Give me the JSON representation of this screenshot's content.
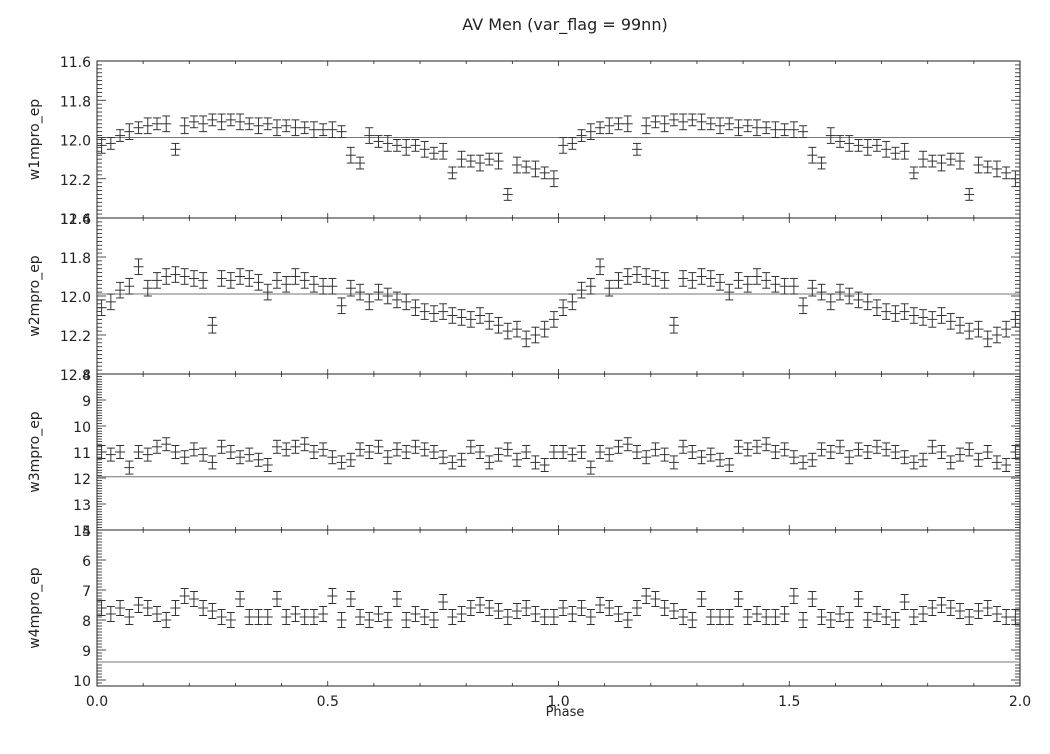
{
  "chart_data": {
    "type": "scatter",
    "title": "AV Men (var_flag = 99nn)",
    "xlabel": "Phase",
    "xlim": [
      0.0,
      2.0
    ],
    "xticks": [
      "0.0",
      "0.5",
      "1.0",
      "1.5",
      "2.0"
    ],
    "panels": [
      {
        "ylabel": "w1mpro_ep",
        "ylim": [
          12.4,
          11.6
        ],
        "yticks": [
          "11.6",
          "11.8",
          "12.0",
          "12.2",
          "12.4"
        ],
        "reference_line": 11.99,
        "series": [
          {
            "x": [
              0.01,
              0.03,
              0.05,
              0.07,
              0.09,
              0.11,
              0.13,
              0.15,
              0.17,
              0.19,
              0.21,
              0.23,
              0.25,
              0.27,
              0.29,
              0.31,
              0.33,
              0.35,
              0.37,
              0.39,
              0.41,
              0.43,
              0.45,
              0.47,
              0.49,
              0.51,
              0.53,
              0.55,
              0.57,
              0.59,
              0.61,
              0.63,
              0.65,
              0.67,
              0.69,
              0.71,
              0.73,
              0.75,
              0.77,
              0.79,
              0.81,
              0.83,
              0.85,
              0.87,
              0.89,
              0.91,
              0.93,
              0.95,
              0.97,
              0.99
            ],
            "y": [
              12.03,
              12.02,
              11.98,
              11.96,
              11.94,
              11.93,
              11.92,
              11.92,
              12.05,
              11.93,
              11.91,
              11.92,
              11.9,
              11.91,
              11.9,
              11.91,
              11.92,
              11.93,
              11.92,
              11.94,
              11.93,
              11.94,
              11.94,
              11.95,
              11.95,
              11.95,
              11.96,
              12.08,
              12.12,
              11.98,
              12.01,
              12.02,
              12.03,
              12.04,
              12.03,
              12.05,
              12.07,
              12.06,
              12.17,
              12.1,
              12.11,
              12.12,
              12.1,
              12.11,
              12.28,
              12.13,
              12.14,
              12.15,
              12.17,
              12.2
            ],
            "err": [
              0.04,
              0.03,
              0.03,
              0.04,
              0.03,
              0.04,
              0.03,
              0.04,
              0.03,
              0.04,
              0.03,
              0.04,
              0.03,
              0.04,
              0.03,
              0.04,
              0.03,
              0.04,
              0.03,
              0.04,
              0.03,
              0.04,
              0.03,
              0.04,
              0.03,
              0.04,
              0.03,
              0.04,
              0.03,
              0.04,
              0.03,
              0.04,
              0.03,
              0.04,
              0.03,
              0.04,
              0.03,
              0.04,
              0.03,
              0.04,
              0.03,
              0.04,
              0.03,
              0.04,
              0.03,
              0.04,
              0.03,
              0.04,
              0.03,
              0.04
            ]
          }
        ]
      },
      {
        "ylabel": "w2mpro_ep",
        "ylim": [
          12.4,
          11.6
        ],
        "yticks": [
          "11.6",
          "11.8",
          "12.0",
          "12.2",
          "12.4"
        ],
        "reference_line": 11.99,
        "series": [
          {
            "x": [
              0.01,
              0.03,
              0.05,
              0.07,
              0.09,
              0.11,
              0.13,
              0.15,
              0.17,
              0.19,
              0.21,
              0.23,
              0.25,
              0.27,
              0.29,
              0.31,
              0.33,
              0.35,
              0.37,
              0.39,
              0.41,
              0.43,
              0.45,
              0.47,
              0.49,
              0.51,
              0.53,
              0.55,
              0.57,
              0.59,
              0.61,
              0.63,
              0.65,
              0.67,
              0.69,
              0.71,
              0.73,
              0.75,
              0.77,
              0.79,
              0.81,
              0.83,
              0.85,
              0.87,
              0.89,
              0.91,
              0.93,
              0.95,
              0.97,
              0.99
            ],
            "y": [
              12.06,
              12.03,
              11.97,
              11.95,
              11.85,
              11.96,
              11.92,
              11.9,
              11.89,
              11.9,
              11.91,
              11.92,
              12.15,
              11.91,
              11.92,
              11.9,
              11.91,
              11.93,
              11.98,
              11.92,
              11.94,
              11.9,
              11.92,
              11.94,
              11.95,
              11.95,
              12.05,
              11.96,
              11.98,
              12.03,
              11.98,
              12.0,
              12.02,
              12.03,
              12.06,
              12.08,
              12.09,
              12.08,
              12.1,
              12.11,
              12.12,
              12.1,
              12.13,
              12.15,
              12.18,
              12.17,
              12.22,
              12.2,
              12.17,
              12.12
            ],
            "err": [
              0.04,
              0.04,
              0.04,
              0.04,
              0.04,
              0.04,
              0.04,
              0.04,
              0.04,
              0.04,
              0.04,
              0.04,
              0.04,
              0.04,
              0.04,
              0.04,
              0.04,
              0.04,
              0.04,
              0.04,
              0.04,
              0.04,
              0.04,
              0.04,
              0.04,
              0.04,
              0.04,
              0.04,
              0.04,
              0.04,
              0.04,
              0.04,
              0.04,
              0.04,
              0.04,
              0.04,
              0.04,
              0.04,
              0.04,
              0.04,
              0.04,
              0.04,
              0.04,
              0.04,
              0.04,
              0.04,
              0.04,
              0.04,
              0.04,
              0.04
            ]
          }
        ]
      },
      {
        "ylabel": "w3mpro_ep",
        "ylim": [
          14,
          8
        ],
        "yticks": [
          "8",
          "9",
          "10",
          "11",
          "12",
          "13",
          "14"
        ],
        "reference_line": 11.95,
        "series": [
          {
            "x": [
              0.01,
              0.03,
              0.05,
              0.07,
              0.09,
              0.11,
              0.13,
              0.15,
              0.17,
              0.19,
              0.21,
              0.23,
              0.25,
              0.27,
              0.29,
              0.31,
              0.33,
              0.35,
              0.37,
              0.39,
              0.41,
              0.43,
              0.45,
              0.47,
              0.49,
              0.51,
              0.53,
              0.55,
              0.57,
              0.59,
              0.61,
              0.63,
              0.65,
              0.67,
              0.69,
              0.71,
              0.73,
              0.75,
              0.77,
              0.79,
              0.81,
              0.83,
              0.85,
              0.87,
              0.89,
              0.91,
              0.93,
              0.95,
              0.97,
              0.99
            ],
            "y": [
              11.0,
              11.1,
              11.0,
              11.6,
              11.0,
              11.1,
              10.8,
              10.7,
              11.0,
              11.2,
              10.9,
              11.1,
              11.4,
              10.8,
              11.0,
              11.2,
              11.1,
              11.3,
              11.5,
              10.8,
              10.9,
              10.8,
              10.7,
              11.0,
              10.9,
              11.2,
              11.4,
              11.3,
              10.9,
              11.0,
              10.8,
              11.2,
              10.9,
              11.0,
              10.8,
              10.9,
              11.0,
              11.2,
              11.4,
              11.3,
              10.8,
              11.0,
              11.4,
              11.1,
              10.9,
              11.3,
              11.0,
              11.4,
              11.5,
              11.0
            ],
            "err": [
              0.25,
              0.25,
              0.25,
              0.25,
              0.25,
              0.25,
              0.25,
              0.25,
              0.25,
              0.25,
              0.25,
              0.25,
              0.25,
              0.25,
              0.25,
              0.25,
              0.25,
              0.25,
              0.25,
              0.25,
              0.25,
              0.25,
              0.25,
              0.25,
              0.25,
              0.25,
              0.25,
              0.25,
              0.25,
              0.25,
              0.25,
              0.25,
              0.25,
              0.25,
              0.25,
              0.25,
              0.25,
              0.25,
              0.25,
              0.25,
              0.25,
              0.25,
              0.25,
              0.25,
              0.25,
              0.25,
              0.25,
              0.25,
              0.25,
              0.25
            ]
          }
        ]
      },
      {
        "ylabel": "w4mpro_ep",
        "ylim": [
          10.2,
          5
        ],
        "yticks": [
          "5",
          "6",
          "7",
          "8",
          "9",
          "10"
        ],
        "reference_line": 9.4,
        "series": [
          {
            "x": [
              0.01,
              0.03,
              0.05,
              0.07,
              0.09,
              0.11,
              0.13,
              0.15,
              0.17,
              0.19,
              0.21,
              0.23,
              0.25,
              0.27,
              0.29,
              0.31,
              0.33,
              0.35,
              0.37,
              0.39,
              0.41,
              0.43,
              0.45,
              0.47,
              0.49,
              0.51,
              0.53,
              0.55,
              0.57,
              0.59,
              0.61,
              0.63,
              0.65,
              0.67,
              0.69,
              0.71,
              0.73,
              0.75,
              0.77,
              0.79,
              0.81,
              0.83,
              0.85,
              0.87,
              0.89,
              0.91,
              0.93,
              0.95,
              0.97,
              0.99
            ],
            "y": [
              7.6,
              7.8,
              7.6,
              7.9,
              7.5,
              7.6,
              7.8,
              8.0,
              7.6,
              7.2,
              7.3,
              7.6,
              7.7,
              7.9,
              8.0,
              7.3,
              7.9,
              7.9,
              7.9,
              7.3,
              7.9,
              7.8,
              7.9,
              7.9,
              7.8,
              7.2,
              8.0,
              7.3,
              7.9,
              8.0,
              7.8,
              8.0,
              7.3,
              8.0,
              7.8,
              7.9,
              8.0,
              7.4,
              7.9,
              7.8,
              7.6,
              7.5,
              7.6,
              7.7,
              7.9,
              7.7,
              7.6,
              7.8,
              7.9,
              7.9
            ],
            "err": [
              0.25,
              0.25,
              0.25,
              0.25,
              0.25,
              0.25,
              0.25,
              0.25,
              0.25,
              0.25,
              0.25,
              0.25,
              0.25,
              0.25,
              0.25,
              0.25,
              0.25,
              0.25,
              0.25,
              0.25,
              0.25,
              0.25,
              0.25,
              0.25,
              0.25,
              0.25,
              0.25,
              0.25,
              0.25,
              0.25,
              0.25,
              0.25,
              0.25,
              0.25,
              0.25,
              0.25,
              0.25,
              0.25,
              0.25,
              0.25,
              0.25,
              0.25,
              0.25,
              0.25,
              0.25,
              0.25,
              0.25,
              0.25,
              0.25,
              0.25
            ]
          }
        ]
      }
    ]
  },
  "colors": {
    "marks": "#333333",
    "axes": "#222222",
    "reference_line": "#777777",
    "background": "#ffffff"
  }
}
